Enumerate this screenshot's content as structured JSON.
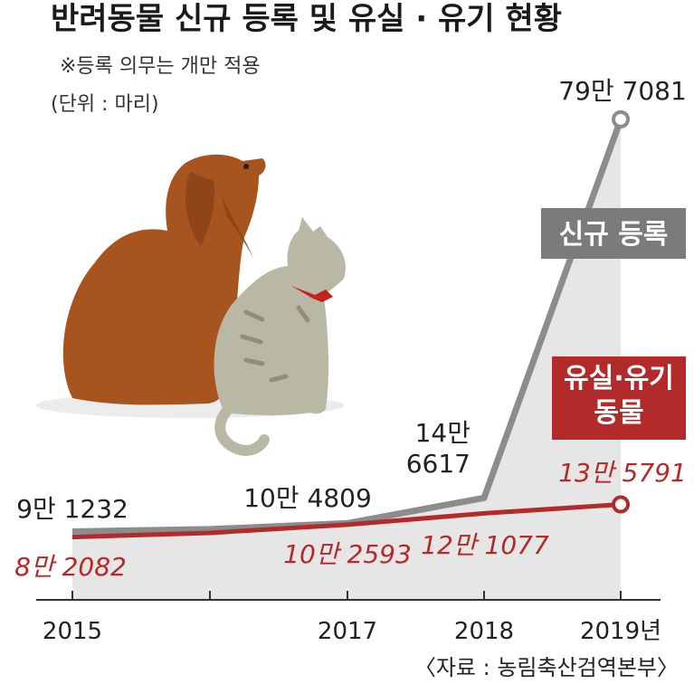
{
  "title": "반려동물 신규 등록 및 유실 · 유기 현황",
  "note": "※등록 의무는 개만 적용",
  "unit": "(단위 : 마리)",
  "source": "〈자료 : 농림축산검역본부〉",
  "colors": {
    "new_line": "#8c8c8c",
    "lost_line": "#b32a2a",
    "area": "#e6e6e6",
    "badge_new": "#7b7b7b",
    "badge_lost": "#b32a2a",
    "axis": "#333333"
  },
  "chart_data": {
    "type": "line",
    "x": [
      2015,
      2016,
      2017,
      2018,
      2019
    ],
    "tick_labels": [
      "2015",
      "",
      "2017",
      "2018",
      "2019년"
    ],
    "ylim": [
      0,
      800000
    ],
    "grid": false,
    "series": [
      {
        "name": "신규 등록",
        "legend_label": "신규 등록",
        "values": [
          91232,
          95000,
          104809,
          146617,
          797081
        ],
        "labels": [
          "9만 1232",
          "",
          "10만 4809",
          "14만\n6617",
          "79만 7081"
        ]
      },
      {
        "name": "유실·유기 동물",
        "legend_label": "유실·유기\n동물",
        "values": [
          82082,
          89000,
          102593,
          121077,
          135791
        ],
        "labels": [
          "8만 2082",
          "",
          "10만 2593",
          "12만 1077",
          "13만 5791"
        ]
      }
    ]
  }
}
